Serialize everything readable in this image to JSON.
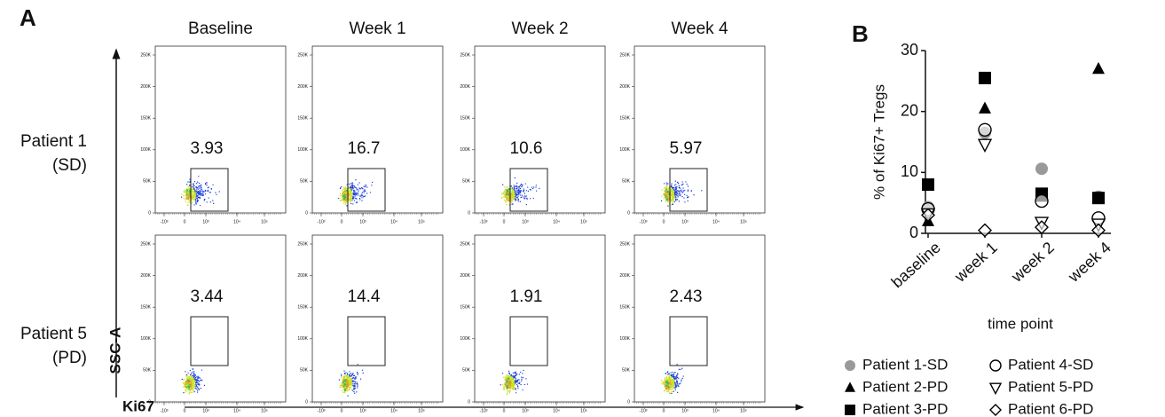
{
  "flow": {
    "label": "A",
    "columns": [
      "Baseline",
      "Week 1",
      "Week 2",
      "Week 4"
    ],
    "rows": [
      {
        "name": "Patient 1",
        "group": "(SD)",
        "gates": [
          3.93,
          16.7,
          10.6,
          5.97
        ]
      },
      {
        "name": "Patient 5",
        "group": "(PD)",
        "gates": [
          3.44,
          14.4,
          1.91,
          2.43
        ]
      }
    ],
    "y_axis_label": "SSC-A",
    "x_axis_label": "Ki67",
    "plot_yticks": [
      "250K",
      "200K",
      "150K",
      "100K",
      "50K",
      "0"
    ],
    "plot_xticks": [
      "-10³",
      "0",
      "10³",
      "10⁴",
      "10⁵"
    ]
  },
  "chart_data": {
    "type": "scatter",
    "panel_label": "B",
    "y_label": "% of Ki67+ Tregs",
    "x_label": "time point",
    "categories": [
      "baseline",
      "week 1",
      "week 2",
      "week 4"
    ],
    "ylim": [
      0,
      30
    ],
    "yticks": [
      0,
      10,
      20,
      30
    ],
    "series": [
      {
        "name": "Patient 1-SD",
        "marker": "circle",
        "filled": true,
        "color": "#999999",
        "values": [
          4.3,
          16.5,
          10.6,
          6.0
        ]
      },
      {
        "name": "Patient 2-PD",
        "marker": "triangle",
        "filled": true,
        "color": "#000000",
        "values": [
          2.0,
          20.5,
          6.0,
          27.0
        ]
      },
      {
        "name": "Patient 3-PD",
        "marker": "square",
        "filled": true,
        "color": "#000000",
        "values": [
          8.0,
          25.5,
          6.5,
          5.8
        ]
      },
      {
        "name": "Patient 4-SD",
        "marker": "circle",
        "filled": false,
        "color": "#000000",
        "values": [
          4.0,
          17.0,
          5.3,
          2.5
        ]
      },
      {
        "name": "Patient 5-PD",
        "marker": "triangle-down",
        "filled": false,
        "color": "#000000",
        "values": [
          3.2,
          14.6,
          1.8,
          1.5
        ]
      },
      {
        "name": "Patient 6-PD",
        "marker": "diamond",
        "filled": false,
        "color": "#000000",
        "values": [
          3.0,
          0.5,
          1.0,
          0.5
        ]
      }
    ]
  }
}
